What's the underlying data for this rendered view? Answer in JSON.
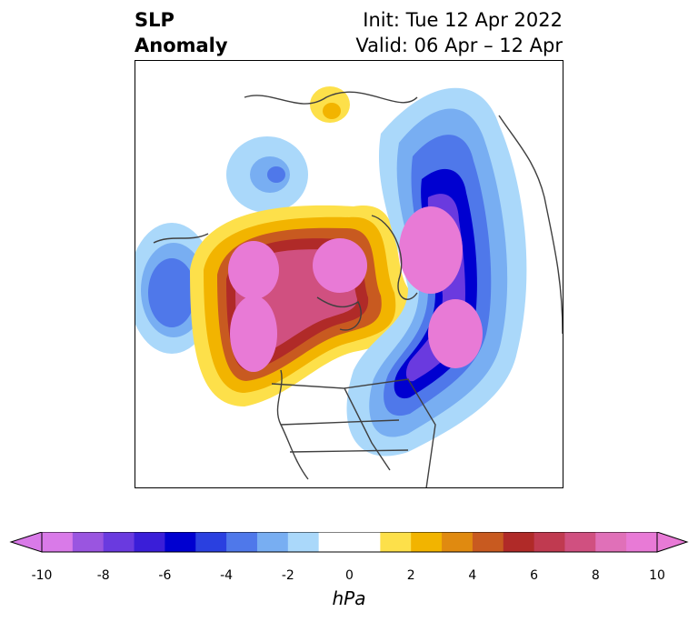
{
  "title": {
    "left_line1": "SLP",
    "left_line2": "Anomaly",
    "right_line1": "Init: Tue 12 Apr 2022",
    "right_line2": "Valid: 06 Apr – 12 Apr"
  },
  "colorbar": {
    "unit": "hPa",
    "ticks": [
      "-10",
      "-8",
      "-6",
      "-4",
      "-2",
      "0",
      "2",
      "4",
      "6",
      "8",
      "10"
    ],
    "colors": [
      "#d97ae8",
      "#9a55e0",
      "#6a3adf",
      "#3a1ed8",
      "#0000d0",
      "#2a40e0",
      "#4f78ea",
      "#78aef2",
      "#aad8fa",
      "#ffffff",
      "#ffffff",
      "#fde04a",
      "#f2b400",
      "#e08a10",
      "#c85a20",
      "#b02a28",
      "#c03a50",
      "#d05080",
      "#e070b8",
      "#e87ad6"
    ]
  }
}
